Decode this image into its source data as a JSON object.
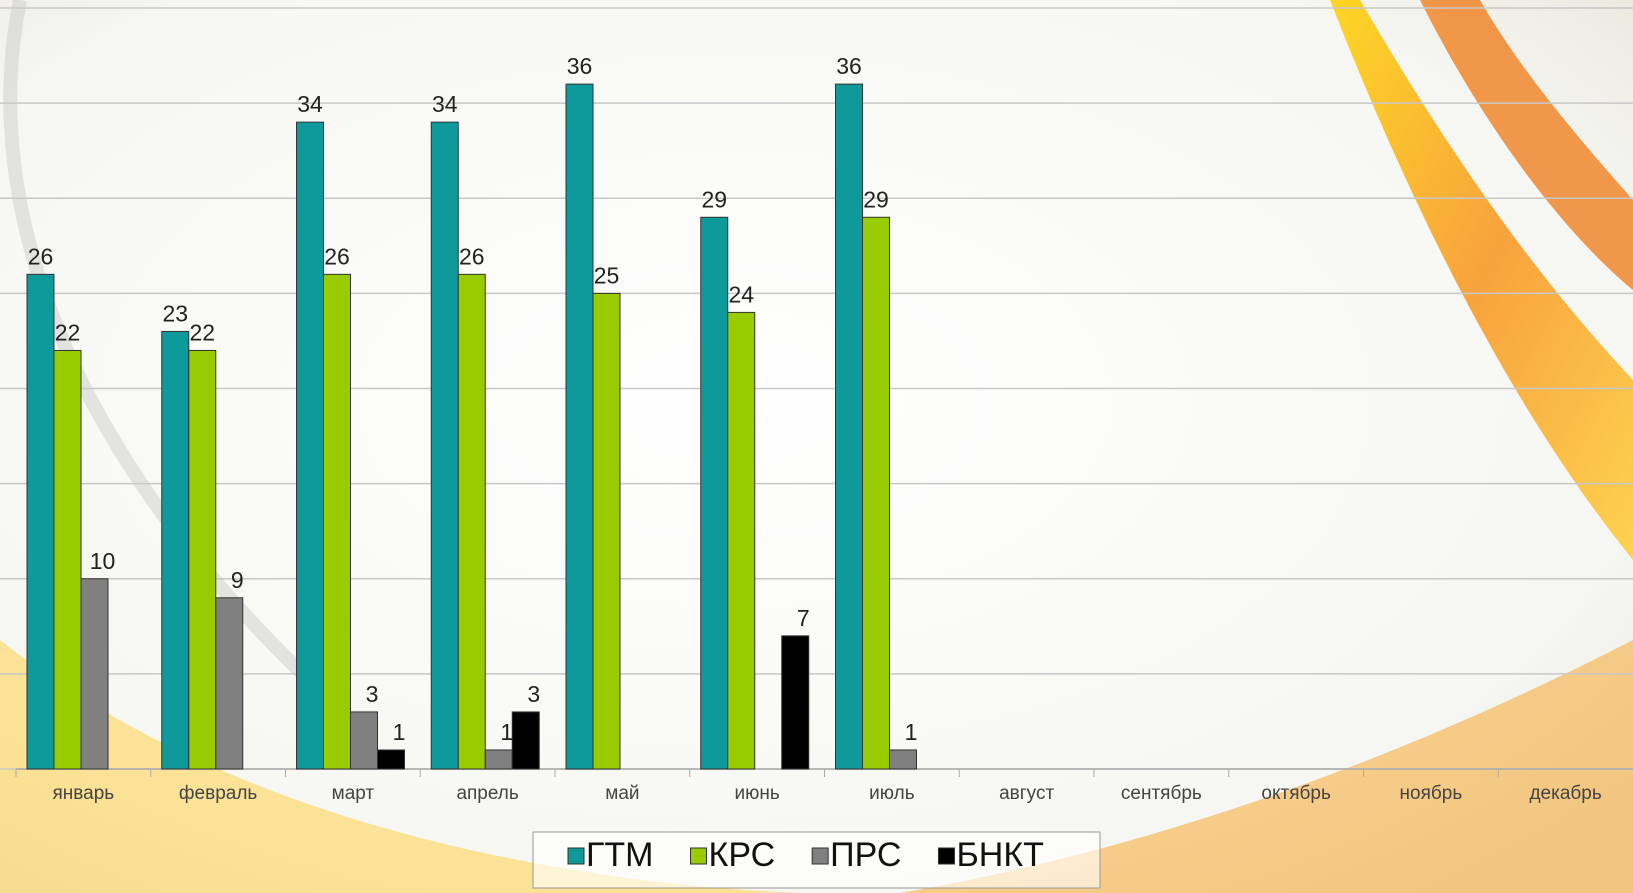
{
  "chart_data": {
    "type": "bar",
    "categories": [
      "январь",
      "февраль",
      "март",
      "апрель",
      "май",
      "июнь",
      "июль",
      "август",
      "сентябрь",
      "октябрь",
      "ноябрь",
      "декабрь"
    ],
    "series": [
      {
        "name": "ГТМ",
        "color": "#0e9a9a",
        "values": [
          26,
          23,
          34,
          34,
          36,
          29,
          36,
          null,
          null,
          null,
          null,
          null
        ]
      },
      {
        "name": "КРС",
        "color": "#99cc00",
        "values": [
          22,
          22,
          26,
          26,
          25,
          24,
          29,
          null,
          null,
          null,
          null,
          null
        ]
      },
      {
        "name": "ПРС",
        "color": "#808080",
        "values": [
          10,
          9,
          3,
          1,
          0,
          0,
          1,
          null,
          null,
          null,
          null,
          null
        ]
      },
      {
        "name": "БНКТ",
        "color": "#000000",
        "values": [
          0,
          0,
          1,
          3,
          0,
          7,
          0,
          null,
          null,
          null,
          null,
          null
        ]
      }
    ],
    "ylim": [
      0,
      40
    ],
    "yticks": [
      0,
      5,
      10,
      15,
      20,
      25,
      30,
      35,
      40
    ],
    "grid": true,
    "legend": "bottom"
  }
}
